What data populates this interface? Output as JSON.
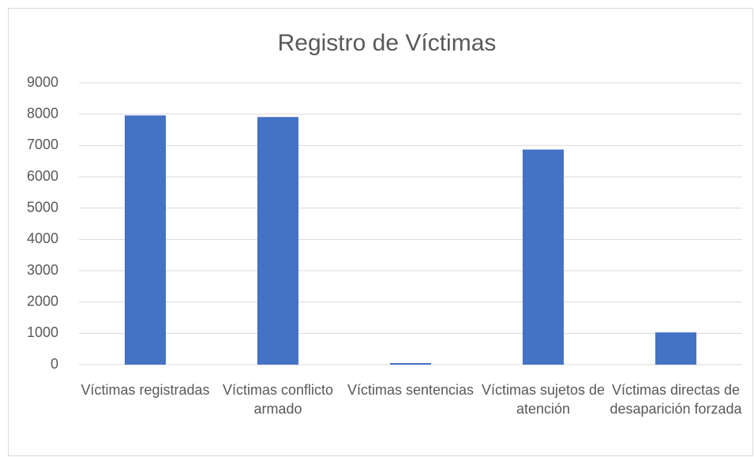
{
  "chart_data": {
    "type": "bar",
    "title": "Registro de Víctimas",
    "categories": [
      "Víctimas registradas",
      "Víctimas conflicto armado",
      "Víctimas sentencias",
      "Víctimas sujetos de atención",
      "Víctimas directas de desaparición forzada"
    ],
    "values": [
      7960,
      7910,
      50,
      6870,
      1030
    ],
    "color": "#4472c4",
    "ylim": [
      0,
      9000
    ],
    "yticks": [
      0,
      1000,
      2000,
      3000,
      4000,
      5000,
      6000,
      7000,
      8000,
      9000
    ],
    "grid": true
  }
}
